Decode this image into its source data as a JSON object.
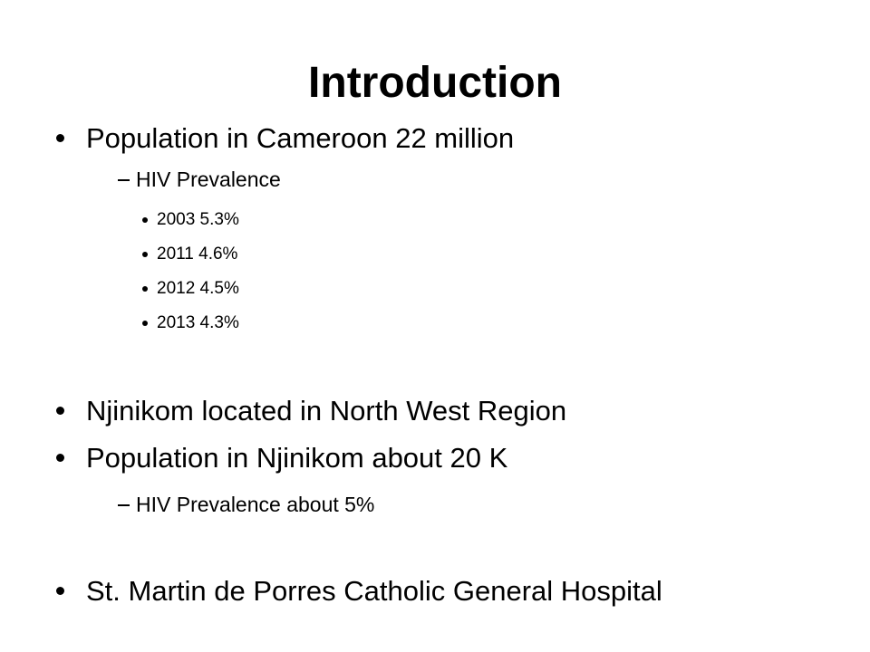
{
  "slide": {
    "title": "Introduction",
    "bullets": [
      {
        "text": "Population in Cameroon 22 million",
        "sub": [
          {
            "text": "HIV Prevalence",
            "sub": [
              "2003 5.3%",
              "2011 4.6%",
              "2012 4.5%",
              "2013 4.3%"
            ]
          }
        ]
      },
      {
        "text": "Njinikom located in North West Region"
      },
      {
        "text": "Population in Njinikom about 20 K",
        "sub": [
          {
            "text": "HIV Prevalence about 5%"
          }
        ]
      },
      {
        "text": "St. Martin de Porres Catholic General Hospital"
      }
    ]
  }
}
